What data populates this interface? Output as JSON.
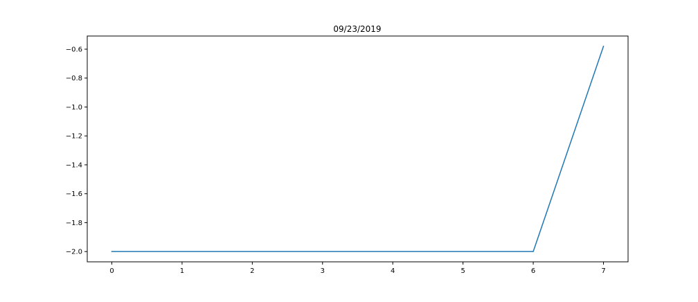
{
  "chart_data": {
    "type": "line",
    "title": "09/23/2019",
    "xlabel": "",
    "ylabel": "",
    "x": [
      0,
      1,
      2,
      3,
      4,
      5,
      6,
      7
    ],
    "series": [
      {
        "values": [
          -2.0,
          -2.0,
          -2.0,
          -2.0,
          -2.0,
          -2.0,
          -2.0,
          -0.58
        ],
        "color": "#1f77b4"
      }
    ],
    "xticks": [
      0,
      1,
      2,
      3,
      4,
      5,
      6,
      7
    ],
    "xtick_labels": [
      "0",
      "1",
      "2",
      "3",
      "4",
      "5",
      "6",
      "7"
    ],
    "yticks": [
      -2.0,
      -1.8,
      -1.6,
      -1.4,
      -1.2,
      -1.0,
      -0.8,
      -0.6
    ],
    "ytick_labels": [
      "−2.0",
      "−1.8",
      "−1.6",
      "−1.4",
      "−1.2",
      "−1.0",
      "−0.8",
      "−0.6"
    ],
    "xlim": [
      -0.35,
      7.35
    ],
    "ylim": [
      -2.071,
      -0.509
    ],
    "grid": false,
    "legend": false
  }
}
